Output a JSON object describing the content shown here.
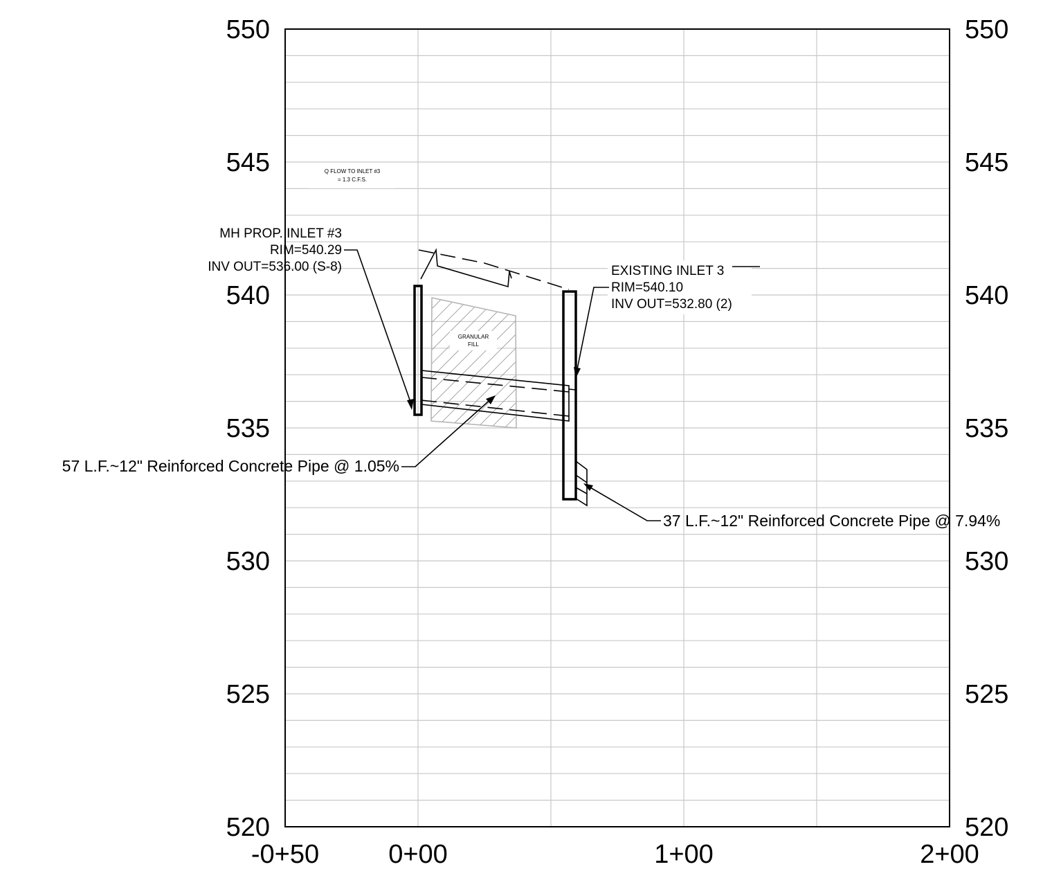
{
  "drawing": {
    "left_axis_labels": [
      "550",
      "545",
      "540",
      "535",
      "530",
      "525",
      "520"
    ],
    "right_axis_labels": [
      "550",
      "545",
      "540",
      "535",
      "530",
      "525",
      "520"
    ],
    "station_labels": [
      "-0+50",
      "0+00",
      "1+00",
      "2+00"
    ],
    "flow_note": {
      "line1": "Q FLOW TO INLET #3",
      "line2": "= 1.3 C.F.S."
    },
    "proposed_inlet": {
      "title": "MH PROP. INLET #3",
      "rim": "RIM=540.29",
      "inv_out": "INV OUT=536.00 (S-8)"
    },
    "existing_inlet": {
      "title": "EXISTING INLET 3",
      "rim": "RIM=540.10",
      "inv_out": "INV OUT=532.80 (2)"
    },
    "fill_label": {
      "line1": "GRANULAR",
      "line2": "FILL"
    },
    "pipe_1": "57 L.F.~12\" Reinforced Concrete Pipe @ 1.05%",
    "pipe_2": "37 L.F.~12\" Reinforced Concrete Pipe @ 7.94%"
  },
  "chart_data": {
    "type": "profile",
    "x_labels": [
      "-0+50",
      "0+00",
      "1+00",
      "2+00"
    ],
    "xlim_stations": [
      -50,
      200
    ],
    "ylim": [
      520,
      550
    ],
    "grid": true,
    "structures": [
      {
        "name": "MH PROP. INLET #3",
        "station": 0,
        "rim": 540.29,
        "invert": 536.0
      },
      {
        "name": "EXISTING INLET 3",
        "station": 57,
        "rim": 540.1,
        "invert": 532.8
      }
    ],
    "pipes": [
      {
        "length_lf": 57,
        "diameter_in": 12,
        "slope_pct": 1.05
      },
      {
        "length_lf": 37,
        "diameter_in": 12,
        "slope_pct": 7.94
      }
    ],
    "flow_cfs": 1.3
  }
}
